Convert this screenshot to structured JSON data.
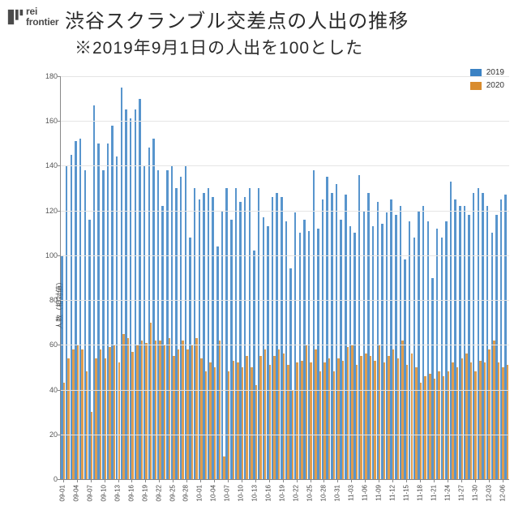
{
  "logo": {
    "line1": "rei",
    "line2": "frontier",
    "mark_color": "#4a4a4a"
  },
  "title": {
    "main": "渋谷スクランブル交差点の人出の推移",
    "sub": "※2019年9月1日の人出を100とした",
    "main_fontsize": 24,
    "sub_fontsize": 21,
    "color": "#2b2b2b"
  },
  "chart": {
    "type": "bar",
    "ylabel": "人数（相対値）",
    "ylim": [
      0,
      180
    ],
    "ytick_step": 20,
    "yticks": [
      0,
      20,
      40,
      60,
      80,
      100,
      120,
      140,
      160,
      180
    ],
    "background_color": "#ffffff",
    "grid_color": "#e5e5e5",
    "axis_color": "#888888",
    "tick_fontsize": 9,
    "xlabel_fontsize": 8,
    "legend": {
      "items": [
        {
          "label": "2019",
          "color": "#3b82c4"
        },
        {
          "label": "2020",
          "color": "#d98c2e"
        }
      ],
      "fontsize": 10,
      "position": "top-right"
    },
    "series_colors": {
      "2019": "#3b82c4",
      "2020": "#d98c2e"
    },
    "bar_opacity": 0.85,
    "x_date_labels": [
      "09-01",
      "09-04",
      "09-07",
      "09-10",
      "09-13",
      "09-16",
      "09-19",
      "09-22",
      "09-25",
      "09-28",
      "10-01",
      "10-04",
      "10-07",
      "10-10",
      "10-13",
      "10-16",
      "10-19",
      "10-22",
      "10-25",
      "10-28",
      "10-31",
      "11-03",
      "11-06",
      "11-09",
      "11-12",
      "11-15",
      "11-18",
      "11-21",
      "11-24",
      "11-27",
      "11-30",
      "12-03",
      "12-06"
    ],
    "x_label_interval": 3,
    "data": {
      "2019": [
        100,
        140,
        145,
        151,
        152,
        138,
        116,
        167,
        150,
        138,
        150,
        158,
        144,
        175,
        165,
        161,
        165,
        170,
        140,
        148,
        152,
        138,
        122,
        138,
        140,
        130,
        135,
        140,
        108,
        130,
        125,
        128,
        130,
        126,
        104,
        120,
        130,
        116,
        130,
        124,
        126,
        130,
        102,
        130,
        117,
        113,
        126,
        128,
        126,
        115,
        94,
        119,
        110,
        116,
        111,
        138,
        112,
        125,
        135,
        128,
        132,
        116,
        127,
        113,
        110,
        136,
        120,
        128,
        113,
        124,
        114,
        119,
        125,
        118,
        122,
        98,
        115,
        108,
        120,
        122,
        115,
        90,
        112,
        108,
        115,
        133,
        125,
        122,
        122,
        118,
        128,
        130,
        128,
        122,
        110,
        118,
        125,
        127
      ],
      "2020": [
        43,
        54,
        58,
        60,
        58,
        48,
        30,
        54,
        58,
        54,
        59,
        60,
        52,
        65,
        63,
        57,
        60,
        62,
        61,
        70,
        62,
        62,
        60,
        63,
        55,
        58,
        62,
        58,
        60,
        63,
        54,
        48,
        52,
        50,
        62,
        10,
        48,
        53,
        52,
        50,
        55,
        50,
        42,
        55,
        58,
        51,
        55,
        58,
        56,
        51,
        40,
        52,
        53,
        60,
        52,
        58,
        48,
        52,
        54,
        48,
        54,
        53,
        59,
        60,
        51,
        55,
        56,
        55,
        53,
        60,
        52,
        55,
        58,
        54,
        62,
        51,
        56,
        50,
        43,
        46,
        47,
        45,
        48,
        46,
        48,
        52,
        50,
        54,
        56,
        52,
        48,
        53,
        52,
        58,
        62,
        52,
        50,
        51
      ]
    }
  }
}
